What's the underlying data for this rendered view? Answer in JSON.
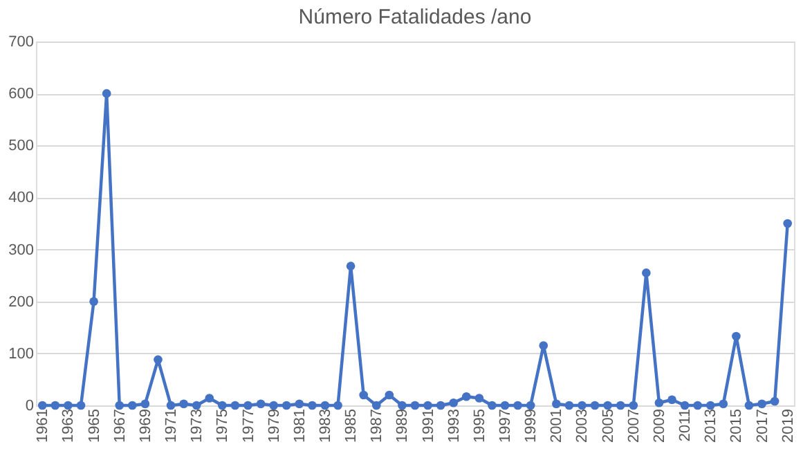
{
  "chart_data": {
    "type": "line",
    "title": "Número Fatalidades /ano",
    "categories": [
      "1961",
      null,
      "1963",
      null,
      "1965",
      null,
      "1967",
      null,
      "1969",
      null,
      "1971",
      null,
      "1973",
      null,
      "1975",
      null,
      "1977",
      null,
      "1979",
      null,
      "1981",
      null,
      "1983",
      null,
      "1985",
      null,
      "1987",
      null,
      "1989",
      null,
      "1991",
      null,
      "1993",
      null,
      "1995",
      null,
      "1997",
      null,
      "1999",
      null,
      "2001",
      null,
      "2003",
      null,
      "2005",
      null,
      "2007",
      null,
      "2009",
      null,
      "2011",
      null,
      "2013",
      null,
      "2015",
      null,
      "2017",
      null,
      "2019"
    ],
    "series": [
      {
        "color": "#4472c4",
        "values": [
          0,
          0,
          0,
          0,
          200,
          600,
          0,
          0,
          3,
          88,
          0,
          3,
          0,
          14,
          0,
          0,
          0,
          3,
          0,
          0,
          3,
          0,
          0,
          0,
          268,
          20,
          0,
          20,
          0,
          0,
          0,
          0,
          5,
          17,
          14,
          0,
          0,
          0,
          0,
          115,
          3,
          0,
          0,
          0,
          0,
          0,
          0,
          255,
          5,
          11,
          0,
          0,
          0,
          3,
          133,
          0,
          3,
          8,
          350
        ]
      }
    ],
    "ylim": [
      0,
      700
    ],
    "yticks": [
      0,
      100,
      200,
      300,
      400,
      500,
      600,
      700
    ],
    "grid": "y",
    "marker": "circle",
    "line_style": "solid",
    "legend": false
  }
}
